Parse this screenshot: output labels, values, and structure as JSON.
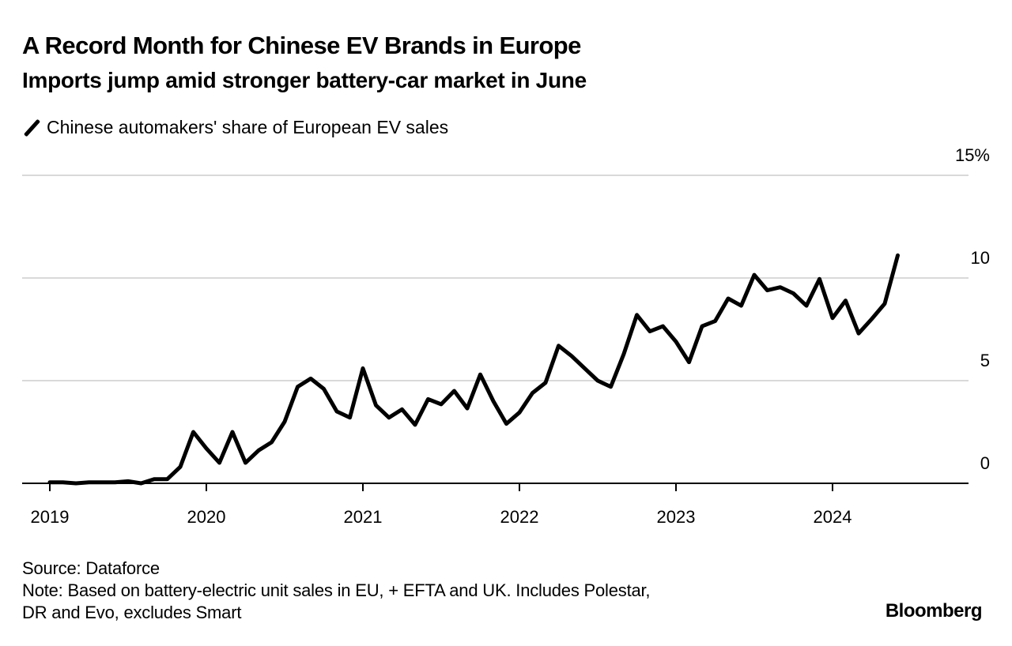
{
  "header": {
    "title": "A Record Month for Chinese EV Brands in Europe",
    "subtitle": "Imports jump amid stronger battery-car market in June"
  },
  "footer": {
    "source": "Source: Dataforce",
    "note_line1": "Note: Based on battery-electric unit sales in EU, + EFTA and UK. Includes Polestar,",
    "note_line2": "DR and Evo, excludes Smart",
    "brand": "Bloomberg"
  },
  "colors": {
    "line": "#000000",
    "grid": "#d9d9d9",
    "axis": "#000000",
    "text": "#000000"
  },
  "chart_data": {
    "type": "line",
    "title": "A Record Month for Chinese EV Brands in Europe",
    "subtitle": "Imports jump amid stronger battery-car market in June",
    "xlabel": "",
    "ylabel": "",
    "legend": {
      "placement": "top-left",
      "entries": [
        "Chinese automakers' share of European EV sales"
      ]
    },
    "grid": true,
    "ylim": [
      0,
      15
    ],
    "xlim": [
      "2019-01",
      "2024-12"
    ],
    "y_ticks": [
      0,
      5,
      10,
      15
    ],
    "y_tick_labels": [
      "0",
      "5",
      "10",
      "15%"
    ],
    "x_ticks": [
      "2019-01",
      "2020-01",
      "2021-01",
      "2022-01",
      "2023-01",
      "2024-01"
    ],
    "x_tick_labels": [
      "2019",
      "2020",
      "2021",
      "2022",
      "2023",
      "2024"
    ],
    "x": [
      "2019-01",
      "2019-02",
      "2019-03",
      "2019-04",
      "2019-05",
      "2019-06",
      "2019-07",
      "2019-08",
      "2019-09",
      "2019-10",
      "2019-11",
      "2019-12",
      "2020-01",
      "2020-02",
      "2020-03",
      "2020-04",
      "2020-05",
      "2020-06",
      "2020-07",
      "2020-08",
      "2020-09",
      "2020-10",
      "2020-11",
      "2020-12",
      "2021-01",
      "2021-02",
      "2021-03",
      "2021-04",
      "2021-05",
      "2021-06",
      "2021-07",
      "2021-08",
      "2021-09",
      "2021-10",
      "2021-11",
      "2021-12",
      "2022-01",
      "2022-02",
      "2022-03",
      "2022-04",
      "2022-05",
      "2022-06",
      "2022-07",
      "2022-08",
      "2022-09",
      "2022-10",
      "2022-11",
      "2022-12",
      "2023-01",
      "2023-02",
      "2023-03",
      "2023-04",
      "2023-05",
      "2023-06",
      "2023-07",
      "2023-08",
      "2023-09",
      "2023-10",
      "2023-11",
      "2023-12",
      "2024-01",
      "2024-02",
      "2024-03",
      "2024-04",
      "2024-05",
      "2024-06"
    ],
    "series": [
      {
        "name": "Chinese automakers' share of European EV sales",
        "unit": "%",
        "values": [
          0.05,
          0.05,
          0.0,
          0.05,
          0.05,
          0.05,
          0.1,
          0.0,
          0.2,
          0.2,
          0.8,
          2.5,
          1.7,
          1.0,
          2.5,
          1.0,
          1.6,
          2.0,
          3.0,
          4.7,
          5.1,
          4.6,
          3.5,
          3.2,
          5.6,
          3.8,
          3.2,
          3.6,
          2.85,
          4.1,
          3.85,
          4.5,
          3.65,
          5.3,
          4.0,
          2.9,
          3.45,
          4.4,
          4.9,
          6.7,
          6.2,
          5.6,
          5.0,
          4.7,
          6.3,
          8.2,
          7.4,
          7.65,
          6.9,
          5.9,
          7.65,
          7.9,
          9.0,
          8.65,
          10.15,
          9.4,
          9.55,
          9.25,
          8.65,
          9.95,
          8.05,
          8.9,
          7.3,
          8.0,
          8.75,
          11.1
        ]
      }
    ]
  }
}
